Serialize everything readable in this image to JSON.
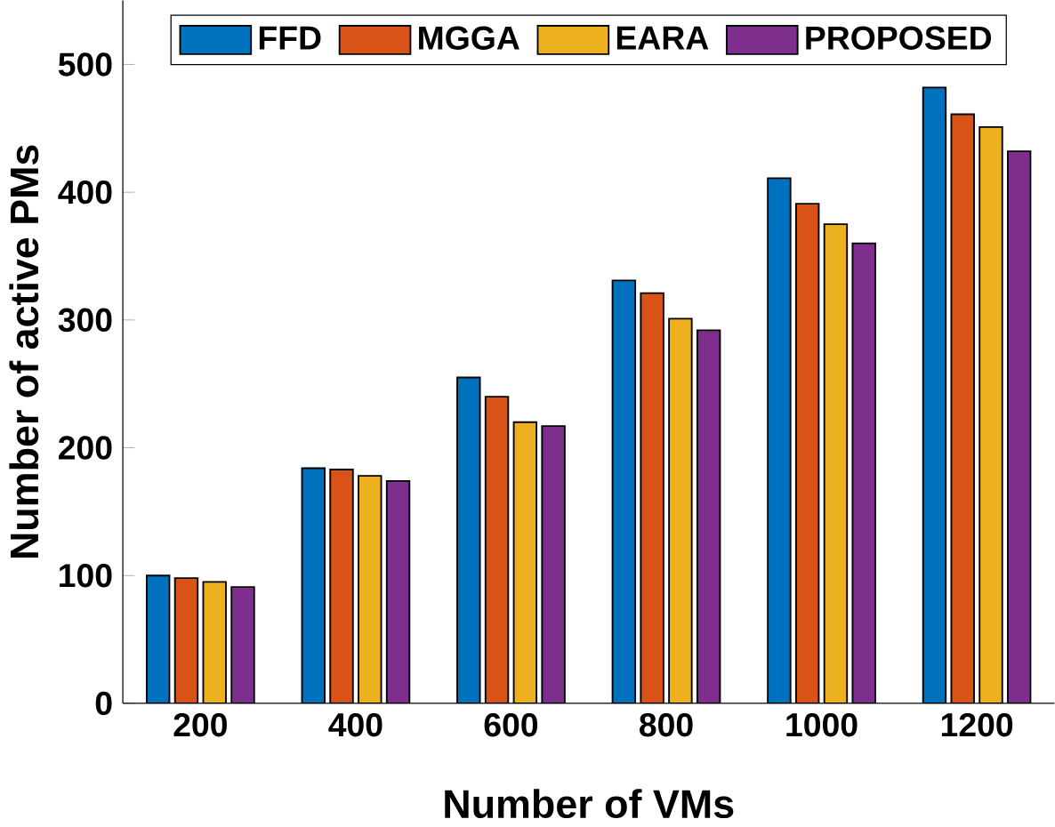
{
  "chart_data": {
    "type": "bar",
    "xlabel": "Number of VMs",
    "ylabel": "Number of active PMs",
    "categories": [
      "200",
      "400",
      "600",
      "800",
      "1000",
      "1200"
    ],
    "series": [
      {
        "name": "FFD",
        "color": "#0072bd",
        "values": [
          100,
          184,
          255,
          331,
          411,
          482
        ]
      },
      {
        "name": "MGGA",
        "color": "#d95319",
        "values": [
          98,
          183,
          240,
          321,
          391,
          461
        ]
      },
      {
        "name": "EARA",
        "color": "#edb120",
        "values": [
          95,
          178,
          220,
          301,
          375,
          451
        ]
      },
      {
        "name": "PROPOSED",
        "color": "#7e2f8e",
        "values": [
          91,
          174,
          217,
          292,
          360,
          432
        ]
      }
    ],
    "ylim": [
      0,
      550
    ],
    "yticks": [
      0,
      100,
      200,
      300,
      400,
      500
    ],
    "legend": "top",
    "grid": false
  }
}
